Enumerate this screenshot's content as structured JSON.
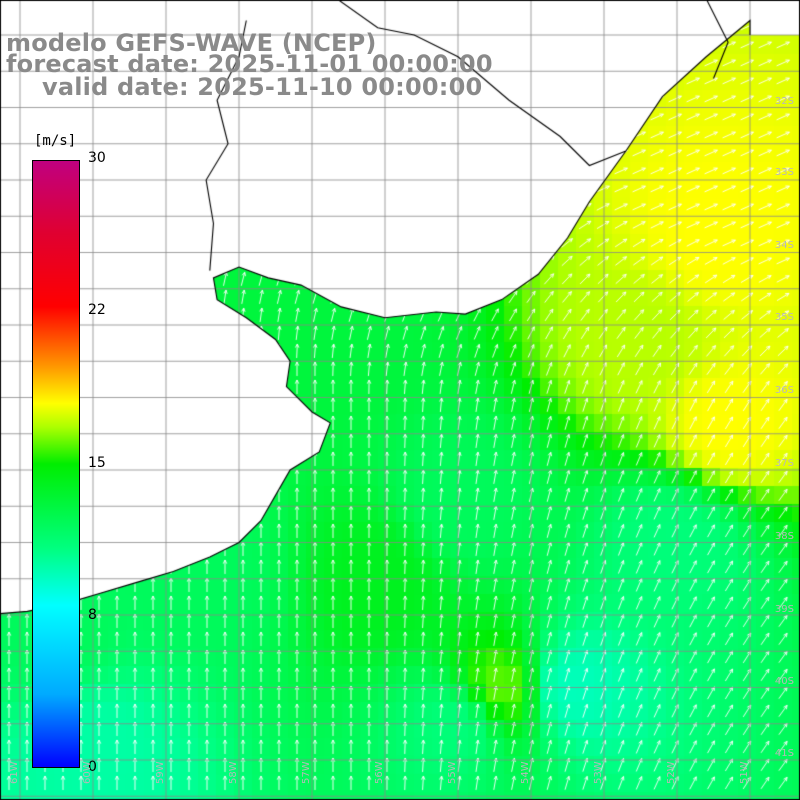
{
  "title": {
    "model": "modelo GEFS-WAVE (NCEP)",
    "forecast_date": "forecast date: 2025-11-01 00:00:00",
    "valid_date": "valid date: 2025-11-10 00:00:00"
  },
  "colorbar": {
    "unit": "[m/s]",
    "ticks": [
      "30",
      "22",
      "15",
      "8",
      "0"
    ]
  },
  "latitude_labels": [
    "32S",
    "33S",
    "34S",
    "35S",
    "36S",
    "37S",
    "38S",
    "39S",
    "40S",
    "41S"
  ],
  "longitude_labels": [
    "61W",
    "60W",
    "59W",
    "58W",
    "57W",
    "56W",
    "55W",
    "54W",
    "53W",
    "52W",
    "51W"
  ],
  "colors": {
    "land": "#ffffff",
    "coastline": "#000000",
    "grid": "#888888",
    "title_text": "#8a8a8a",
    "arrow": "#ffffff",
    "scale_low": "#0000ff",
    "scale_mid_low": "#00ffff",
    "scale_mid": "#00ee00",
    "scale_mid_high": "#ffff00",
    "scale_high": "#ff0000",
    "scale_max": "#c00080"
  },
  "chart_data": {
    "type": "heatmap",
    "variable": "wind speed",
    "unit": "m/s",
    "scale_range": [
      0,
      30
    ],
    "lon_range": [
      -62,
      -51
    ],
    "lat_range": [
      -42,
      -31
    ],
    "grid": true,
    "dominant_wind_direction": "from south-southwest, turning west-southwest toward northeast of domain",
    "typical_speed_m_s": {
      "south_open_ocean": 10,
      "river_plate_mouth": 13,
      "central_shelf": 12,
      "northeast_offshore": 18,
      "east_of_36S": 17
    }
  }
}
